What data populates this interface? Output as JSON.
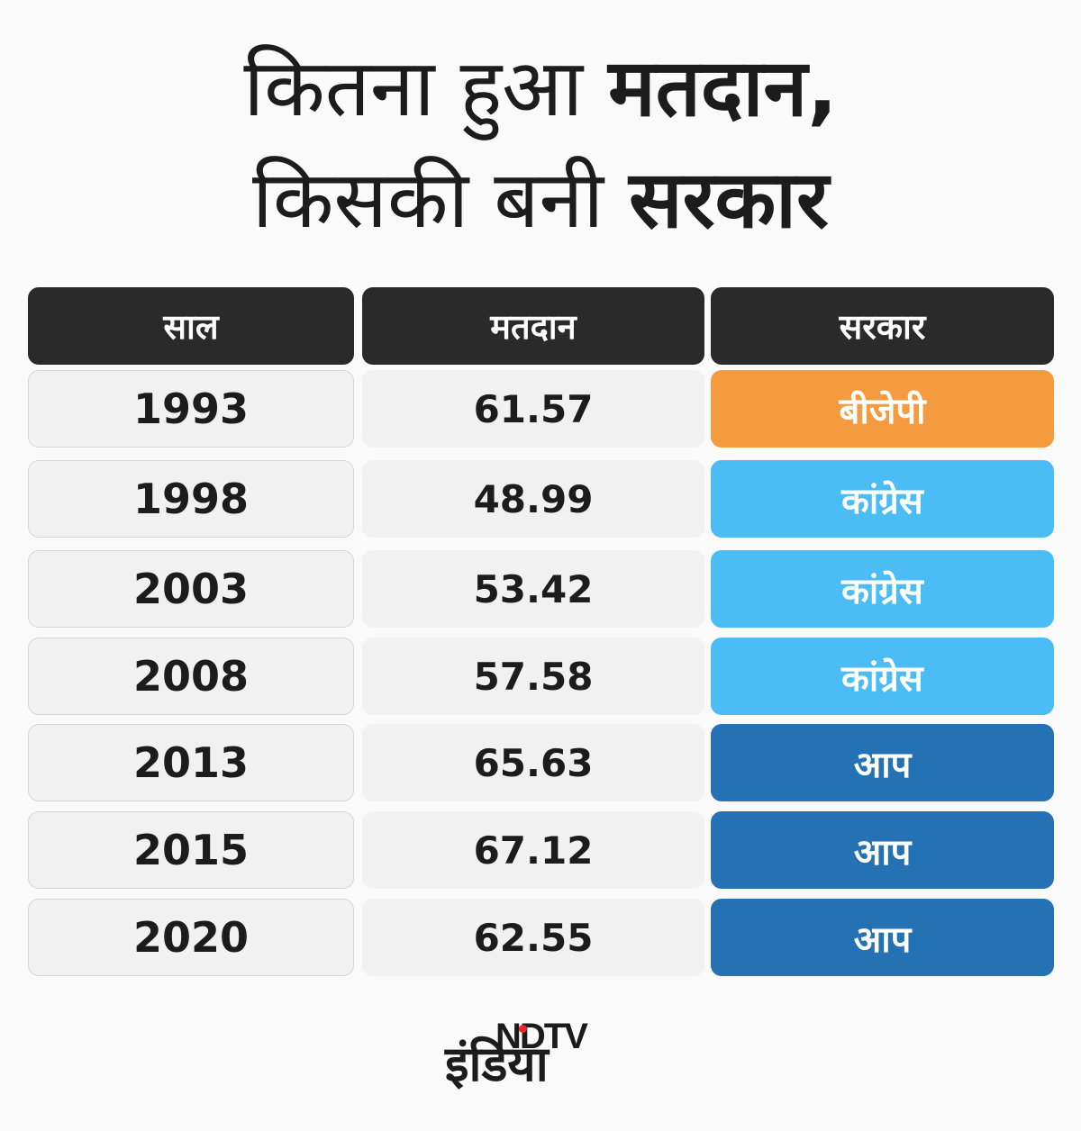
{
  "title": {
    "line1_light": "कितना हुआ ",
    "line1_bold": "मतदान,",
    "line2_light": "किसकी बनी ",
    "line2_bold": "सरकार"
  },
  "colors": {
    "header_bg": "#2a2a2a",
    "cell_bg": "#f1f1f1",
    "bjp": "#f39b3e",
    "congress": "#4bbcf4",
    "aap": "#2471b3"
  },
  "chart_data": {
    "type": "table",
    "columns": [
      "साल",
      "मतदान",
      "सरकार"
    ],
    "rows": [
      {
        "year": "1993",
        "turnout": "61.57",
        "govt": "बीजेपी",
        "party": "bjp"
      },
      {
        "year": "1998",
        "turnout": "48.99",
        "govt": "कांग्रेस",
        "party": "congress"
      },
      {
        "year": "2003",
        "turnout": "53.42",
        "govt": "कांग्रेस",
        "party": "congress"
      },
      {
        "year": "2008",
        "turnout": "57.58",
        "govt": "कांग्रेस",
        "party": "congress"
      },
      {
        "year": "2013",
        "turnout": "65.63",
        "govt": "आप",
        "party": "aap"
      },
      {
        "year": "2015",
        "turnout": "67.12",
        "govt": "आप",
        "party": "aap"
      },
      {
        "year": "2020",
        "turnout": "62.55",
        "govt": "आप",
        "party": "aap"
      }
    ]
  },
  "logo": {
    "ndtv": "NDTV",
    "india": "इंडिया"
  }
}
